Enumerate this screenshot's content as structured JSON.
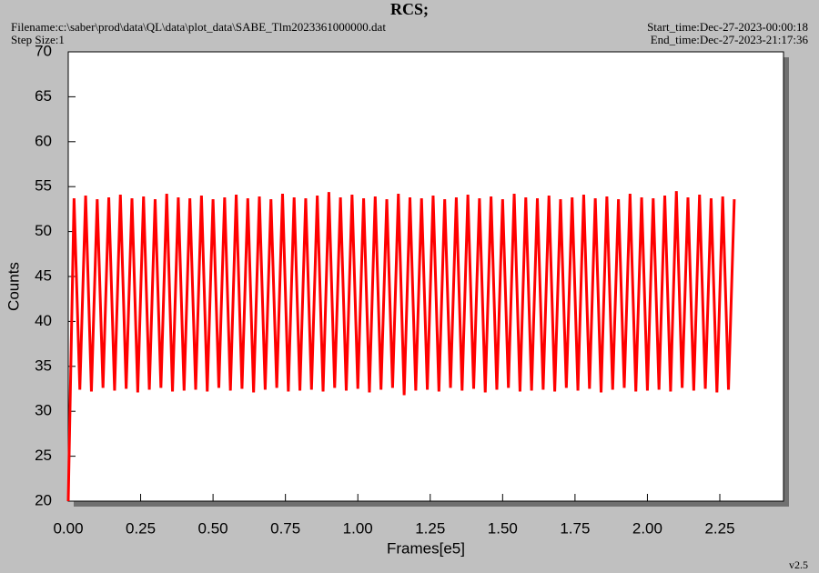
{
  "chart_data": {
    "type": "line",
    "title": "RCS;",
    "filename": "Filename:c:\\saber\\prod\\data\\QL\\data\\plot_data\\SABE_Tlm2023361000000.dat",
    "step_size": "Step Size:1",
    "start_time": "Start_time:Dec-27-2023-00:00:18",
    "end_time": "End_time:Dec-27-2023-21:17:36",
    "version": "v2.5",
    "x_label": "Frames[e5]",
    "y_label": "Counts",
    "color": "#ff0000",
    "xlim": [
      0,
      2.47
    ],
    "ylim": [
      20,
      70
    ],
    "xticks": [
      {
        "value": 0,
        "label": "0.00"
      },
      {
        "value": 0.25,
        "label": "0.25"
      },
      {
        "value": 0.5,
        "label": "0.50"
      },
      {
        "value": 0.75,
        "label": "0.75"
      },
      {
        "value": 1,
        "label": "1.00"
      },
      {
        "value": 1.25,
        "label": "1.25"
      },
      {
        "value": 1.5,
        "label": "1.50"
      },
      {
        "value": 1.75,
        "label": "1.75"
      },
      {
        "value": 2,
        "label": "2.00"
      },
      {
        "value": 2.25,
        "label": "2.25"
      }
    ],
    "yticks": [
      20,
      25,
      30,
      35,
      40,
      45,
      50,
      55,
      60,
      65,
      70
    ],
    "x": [
      0,
      0.02,
      0.04,
      0.06,
      0.08,
      0.1,
      0.12,
      0.14,
      0.16,
      0.18,
      0.2,
      0.22,
      0.24,
      0.26,
      0.28,
      0.3,
      0.32,
      0.34,
      0.36,
      0.38,
      0.4,
      0.42,
      0.44,
      0.46,
      0.48,
      0.5,
      0.52,
      0.54,
      0.56,
      0.58,
      0.6,
      0.62,
      0.64,
      0.66,
      0.68,
      0.7,
      0.72,
      0.74,
      0.76,
      0.78,
      0.8,
      0.82,
      0.84,
      0.86,
      0.88,
      0.9,
      0.92,
      0.94,
      0.96,
      0.98,
      1,
      1.02,
      1.04,
      1.06,
      1.08,
      1.1,
      1.12,
      1.14,
      1.16,
      1.18,
      1.2,
      1.22,
      1.24,
      1.26,
      1.28,
      1.3,
      1.32,
      1.34,
      1.36,
      1.38,
      1.4,
      1.42,
      1.44,
      1.46,
      1.48,
      1.5,
      1.52,
      1.54,
      1.56,
      1.58,
      1.6,
      1.62,
      1.64,
      1.66,
      1.68,
      1.7,
      1.72,
      1.74,
      1.76,
      1.78,
      1.8,
      1.82,
      1.84,
      1.86,
      1.88,
      1.9,
      1.92,
      1.94,
      1.96,
      1.98,
      2,
      2.02,
      2.04,
      2.06,
      2.08,
      2.1,
      2.12,
      2.14,
      2.16,
      2.18,
      2.2,
      2.22,
      2.24,
      2.26,
      2.28,
      2.3
    ],
    "values": [
      20,
      53.7,
      32.4,
      54.0,
      32.2,
      53.6,
      32.6,
      53.8,
      32.3,
      54.1,
      32.5,
      53.7,
      32.1,
      53.9,
      32.4,
      53.6,
      32.6,
      54.2,
      32.2,
      53.8,
      32.3,
      53.7,
      32.4,
      54.0,
      32.2,
      53.6,
      32.6,
      53.8,
      32.3,
      54.1,
      32.5,
      53.7,
      32.1,
      53.9,
      32.4,
      53.6,
      32.6,
      54.2,
      32.2,
      53.8,
      32.3,
      53.7,
      32.4,
      54.0,
      32.2,
      54.4,
      32.6,
      53.8,
      32.3,
      54.1,
      32.5,
      53.7,
      32.1,
      53.9,
      32.4,
      53.6,
      32.6,
      54.2,
      31.8,
      53.8,
      32.3,
      53.7,
      32.4,
      54.0,
      32.2,
      53.6,
      32.6,
      53.8,
      32.3,
      54.1,
      32.5,
      53.7,
      32.1,
      53.9,
      32.4,
      53.6,
      32.6,
      54.2,
      32.2,
      53.8,
      32.3,
      53.7,
      32.4,
      54.0,
      32.2,
      53.6,
      32.6,
      53.8,
      32.3,
      54.1,
      32.5,
      53.7,
      32.1,
      53.9,
      32.4,
      53.6,
      32.6,
      54.2,
      32.2,
      53.8,
      32.3,
      53.7,
      32.4,
      54.0,
      32.2,
      54.5,
      32.6,
      53.8,
      32.3,
      54.1,
      32.5,
      53.7,
      32.1,
      53.9,
      32.4,
      53.6
    ]
  }
}
